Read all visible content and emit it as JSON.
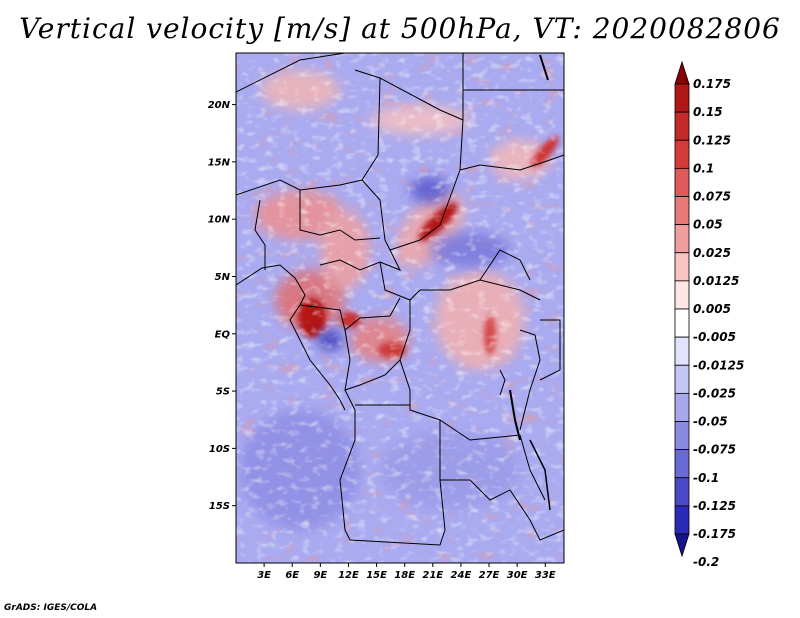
{
  "title": "Vertical velocity [m/s] at 500hPa, VT: 2020082806",
  "credit": "GrADS: IGES/COLA",
  "map": {
    "lon_ticks": [
      "3E",
      "6E",
      "9E",
      "12E",
      "15E",
      "18E",
      "21E",
      "24E",
      "27E",
      "30E",
      "33E"
    ],
    "lat_ticks": [
      "20N",
      "15N",
      "10N",
      "5N",
      "EQ",
      "5S",
      "10S",
      "15S"
    ],
    "lon_range": [
      0,
      35
    ],
    "lat_range": [
      -20,
      24.5
    ]
  },
  "colorbar": {
    "labels": [
      "0.175",
      "0.15",
      "0.125",
      "0.1",
      "0.075",
      "0.05",
      "0.025",
      "0.0125",
      "0.005",
      "-0.005",
      "-0.0125",
      "-0.025",
      "-0.05",
      "-0.075",
      "-0.1",
      "-0.125",
      "-0.175",
      "-0.2"
    ],
    "colors": [
      "#8b0000",
      "#b01818",
      "#c42a2a",
      "#d43c3c",
      "#df5a5a",
      "#e97a7a",
      "#f19e9e",
      "#f8c4c4",
      "#fde6e6",
      "#ffffff",
      "#e2e2fb",
      "#c6c6f4",
      "#a8a8ec",
      "#8a8ae2",
      "#6a6ad6",
      "#4a4ac8",
      "#2a2ab4",
      "#14148e"
    ]
  },
  "colors": {
    "background_field": "#a9aaf0",
    "positive": "#e35b5b",
    "negative": "#6a6ad6",
    "boundary": "#000000"
  }
}
